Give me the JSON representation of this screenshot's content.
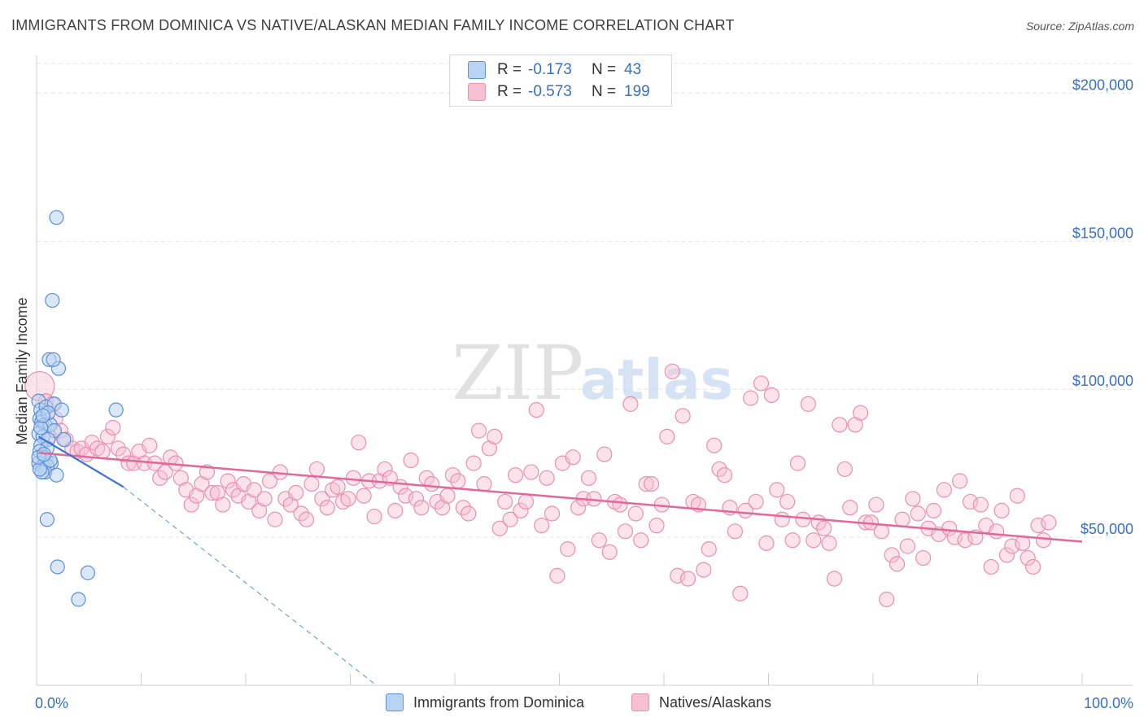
{
  "title": "IMMIGRANTS FROM DOMINICA VS NATIVE/ALASKAN MEDIAN FAMILY INCOME CORRELATION CHART",
  "source": "Source: ZipAtlas.com",
  "watermark": {
    "zip": "ZIP",
    "atlas": "atlas"
  },
  "colors": {
    "blue_fill": "#b9d3f3",
    "blue_stroke": "#5b8fd8",
    "blue_line": "#3a74d4",
    "pink_fill": "#f7bfd2",
    "pink_stroke": "#e890b0",
    "pink_line": "#e2679a",
    "value_text": "#3a6fc4",
    "grid": "#e3e3e3",
    "axis": "#cfcfcf"
  },
  "legend": {
    "rows": [
      {
        "r_label": "R =",
        "r_value": "-0.173",
        "n_label": "N =",
        "n_value": "43",
        "series": "blue"
      },
      {
        "r_label": "R =",
        "r_value": "-0.573",
        "n_label": "N =",
        "n_value": "199",
        "series": "pink"
      }
    ]
  },
  "bottom_legend": {
    "items": [
      {
        "label": "Immigrants from Dominica",
        "series": "blue"
      },
      {
        "label": "Natives/Alaskans",
        "series": "pink"
      }
    ]
  },
  "chart_data": {
    "type": "scatter",
    "title": "IMMIGRANTS FROM DOMINICA VS NATIVE/ALASKAN MEDIAN FAMILY INCOME CORRELATION CHART",
    "xlabel": "",
    "ylabel": "Median Family Income",
    "x_unit": "percent",
    "xlim": [
      0,
      100
    ],
    "ylim": [
      0,
      210000
    ],
    "x_tick_labels": [
      {
        "value": 0,
        "label": "0.0%"
      },
      {
        "value": 100,
        "label": "100.0%"
      }
    ],
    "y_ticks": [
      {
        "value": 50000,
        "label": "$50,000"
      },
      {
        "value": 100000,
        "label": "$100,000"
      },
      {
        "value": 150000,
        "label": "$150,000"
      },
      {
        "value": 200000,
        "label": "$200,000"
      }
    ],
    "series": [
      {
        "name": "Immigrants from Dominica",
        "color": "blue",
        "points": [
          [
            1.9,
            158000
          ],
          [
            1.5,
            130000
          ],
          [
            1.2,
            110000
          ],
          [
            2.1,
            107000
          ],
          [
            1.6,
            110000
          ],
          [
            0.2,
            96000
          ],
          [
            0.4,
            93000
          ],
          [
            0.9,
            94000
          ],
          [
            1.7,
            95000
          ],
          [
            2.4,
            93000
          ],
          [
            7.6,
            93000
          ],
          [
            0.3,
            90000
          ],
          [
            0.5,
            89000
          ],
          [
            0.8,
            88000
          ],
          [
            1.3,
            88000
          ],
          [
            1.7,
            86000
          ],
          [
            0.2,
            85000
          ],
          [
            0.6,
            84000
          ],
          [
            1.1,
            83000
          ],
          [
            2.6,
            83000
          ],
          [
            0.4,
            81000
          ],
          [
            1.0,
            80000
          ],
          [
            0.3,
            79000
          ],
          [
            0.7,
            77000
          ],
          [
            0.9,
            76000
          ],
          [
            1.4,
            75000
          ],
          [
            0.2,
            75000
          ],
          [
            0.6,
            74000
          ],
          [
            1.0,
            74000
          ],
          [
            0.8,
            72000
          ],
          [
            1.9,
            71000
          ],
          [
            0.5,
            72000
          ],
          [
            1.3,
            76000
          ],
          [
            0.3,
            73000
          ],
          [
            0.2,
            77000
          ],
          [
            0.7,
            78000
          ],
          [
            1.1,
            92000
          ],
          [
            0.4,
            87000
          ],
          [
            1.0,
            56000
          ],
          [
            2.0,
            40000
          ],
          [
            4.9,
            38000
          ],
          [
            4.0,
            29000
          ],
          [
            0.6,
            91000
          ]
        ],
        "trend": {
          "solid": [
            [
              0.2,
              84000
            ],
            [
              8.3,
              67000
            ]
          ],
          "dashed": [
            [
              8.3,
              67000
            ],
            [
              32.5,
              0
            ]
          ]
        }
      },
      {
        "name": "Natives/Alaskans",
        "color": "pink",
        "points": [
          [
            0.3,
            101000
          ],
          [
            0.9,
            96000
          ],
          [
            1.5,
            95000
          ],
          [
            1.8,
            90000
          ],
          [
            2.3,
            86000
          ],
          [
            2.8,
            83000
          ],
          [
            3.4,
            80000
          ],
          [
            3.9,
            79000
          ],
          [
            1.2,
            84000
          ],
          [
            4.3,
            80000
          ],
          [
            4.8,
            78000
          ],
          [
            5.3,
            82000
          ],
          [
            5.8,
            80000
          ],
          [
            6.3,
            79000
          ],
          [
            6.8,
            84000
          ],
          [
            7.3,
            87000
          ],
          [
            7.8,
            80000
          ],
          [
            8.3,
            78000
          ],
          [
            8.8,
            75000
          ],
          [
            9.3,
            75000
          ],
          [
            9.8,
            79000
          ],
          [
            10.3,
            75000
          ],
          [
            10.8,
            81000
          ],
          [
            11.3,
            75000
          ],
          [
            11.8,
            70000
          ],
          [
            12.3,
            72000
          ],
          [
            12.8,
            77000
          ],
          [
            13.3,
            75000
          ],
          [
            13.8,
            70000
          ],
          [
            14.3,
            66000
          ],
          [
            14.8,
            61000
          ],
          [
            15.3,
            64000
          ],
          [
            15.8,
            68000
          ],
          [
            16.3,
            72000
          ],
          [
            16.8,
            65000
          ],
          [
            17.3,
            65000
          ],
          [
            17.8,
            61000
          ],
          [
            18.3,
            69000
          ],
          [
            18.8,
            66000
          ],
          [
            19.3,
            64000
          ],
          [
            19.8,
            68000
          ],
          [
            20.3,
            62000
          ],
          [
            20.8,
            66000
          ],
          [
            21.3,
            59000
          ],
          [
            21.8,
            63000
          ],
          [
            22.3,
            69000
          ],
          [
            22.8,
            56000
          ],
          [
            23.3,
            72000
          ],
          [
            23.8,
            63000
          ],
          [
            24.3,
            61000
          ],
          [
            24.8,
            65000
          ],
          [
            25.3,
            58000
          ],
          [
            25.8,
            56000
          ],
          [
            26.3,
            68000
          ],
          [
            26.8,
            73000
          ],
          [
            27.3,
            63000
          ],
          [
            27.8,
            60000
          ],
          [
            28.3,
            66000
          ],
          [
            28.8,
            67000
          ],
          [
            29.3,
            62000
          ],
          [
            29.8,
            63000
          ],
          [
            30.3,
            70000
          ],
          [
            30.8,
            82000
          ],
          [
            31.3,
            64000
          ],
          [
            31.8,
            69000
          ],
          [
            32.3,
            57000
          ],
          [
            32.8,
            69000
          ],
          [
            33.3,
            73000
          ],
          [
            33.8,
            70000
          ],
          [
            34.3,
            59000
          ],
          [
            34.8,
            67000
          ],
          [
            35.3,
            64000
          ],
          [
            35.8,
            76000
          ],
          [
            36.3,
            63000
          ],
          [
            36.8,
            60000
          ],
          [
            37.3,
            70000
          ],
          [
            37.8,
            68000
          ],
          [
            38.3,
            62000
          ],
          [
            38.8,
            60000
          ],
          [
            39.3,
            64000
          ],
          [
            39.8,
            71000
          ],
          [
            40.3,
            69000
          ],
          [
            40.8,
            60000
          ],
          [
            41.3,
            58000
          ],
          [
            41.8,
            75000
          ],
          [
            42.3,
            86000
          ],
          [
            42.8,
            68000
          ],
          [
            43.3,
            80000
          ],
          [
            43.8,
            84000
          ],
          [
            44.3,
            53000
          ],
          [
            44.8,
            62000
          ],
          [
            45.3,
            56000
          ],
          [
            45.8,
            71000
          ],
          [
            46.3,
            59000
          ],
          [
            46.8,
            62000
          ],
          [
            47.3,
            72000
          ],
          [
            47.8,
            93000
          ],
          [
            48.3,
            54000
          ],
          [
            48.8,
            70000
          ],
          [
            49.3,
            58000
          ],
          [
            49.8,
            37000
          ],
          [
            50.3,
            75000
          ],
          [
            50.8,
            46000
          ],
          [
            51.3,
            77000
          ],
          [
            51.8,
            60000
          ],
          [
            52.3,
            63000
          ],
          [
            52.8,
            70000
          ],
          [
            53.3,
            63000
          ],
          [
            53.8,
            49000
          ],
          [
            54.3,
            78000
          ],
          [
            54.8,
            45000
          ],
          [
            55.3,
            62000
          ],
          [
            55.8,
            61000
          ],
          [
            56.3,
            52000
          ],
          [
            56.8,
            95000
          ],
          [
            57.3,
            58000
          ],
          [
            57.8,
            49000
          ],
          [
            58.3,
            68000
          ],
          [
            58.8,
            68000
          ],
          [
            59.3,
            54000
          ],
          [
            59.8,
            61000
          ],
          [
            60.3,
            84000
          ],
          [
            60.8,
            106000
          ],
          [
            61.3,
            37000
          ],
          [
            61.8,
            91000
          ],
          [
            62.3,
            36000
          ],
          [
            62.8,
            62000
          ],
          [
            63.3,
            61000
          ],
          [
            63.8,
            39000
          ],
          [
            64.3,
            46000
          ],
          [
            64.8,
            81000
          ],
          [
            65.3,
            73000
          ],
          [
            65.8,
            71000
          ],
          [
            66.3,
            60000
          ],
          [
            66.8,
            52000
          ],
          [
            67.3,
            31000
          ],
          [
            67.8,
            59000
          ],
          [
            68.3,
            97000
          ],
          [
            68.8,
            62000
          ],
          [
            69.3,
            102000
          ],
          [
            69.8,
            48000
          ],
          [
            70.3,
            98000
          ],
          [
            70.8,
            66000
          ],
          [
            71.3,
            56000
          ],
          [
            71.8,
            62000
          ],
          [
            72.3,
            49000
          ],
          [
            72.8,
            75000
          ],
          [
            73.3,
            56000
          ],
          [
            73.8,
            95000
          ],
          [
            74.3,
            49000
          ],
          [
            74.8,
            55000
          ],
          [
            75.3,
            53000
          ],
          [
            75.8,
            48000
          ],
          [
            76.3,
            36000
          ],
          [
            76.8,
            88000
          ],
          [
            77.3,
            73000
          ],
          [
            77.8,
            60000
          ],
          [
            78.3,
            88000
          ],
          [
            78.8,
            92000
          ],
          [
            79.3,
            55000
          ],
          [
            79.8,
            55000
          ],
          [
            80.3,
            61000
          ],
          [
            80.8,
            52000
          ],
          [
            81.3,
            29000
          ],
          [
            81.8,
            44000
          ],
          [
            82.3,
            41000
          ],
          [
            82.8,
            56000
          ],
          [
            83.3,
            47000
          ],
          [
            83.8,
            63000
          ],
          [
            84.3,
            58000
          ],
          [
            84.8,
            43000
          ],
          [
            85.3,
            53000
          ],
          [
            85.8,
            59000
          ],
          [
            86.3,
            51000
          ],
          [
            86.8,
            66000
          ],
          [
            87.3,
            53000
          ],
          [
            87.8,
            50000
          ],
          [
            88.3,
            69000
          ],
          [
            88.8,
            49000
          ],
          [
            89.3,
            62000
          ],
          [
            89.8,
            50000
          ],
          [
            90.3,
            61000
          ],
          [
            90.8,
            54000
          ],
          [
            91.3,
            40000
          ],
          [
            91.8,
            52000
          ],
          [
            92.3,
            59000
          ],
          [
            92.8,
            44000
          ],
          [
            93.3,
            47000
          ],
          [
            93.8,
            64000
          ],
          [
            94.3,
            48000
          ],
          [
            94.8,
            43000
          ],
          [
            95.3,
            40000
          ],
          [
            95.8,
            54000
          ],
          [
            96.3,
            49000
          ],
          [
            96.8,
            55000
          ]
        ],
        "trend": {
          "solid": [
            [
              0.2,
              78500
            ],
            [
              100,
              48500
            ]
          ]
        }
      }
    ]
  }
}
